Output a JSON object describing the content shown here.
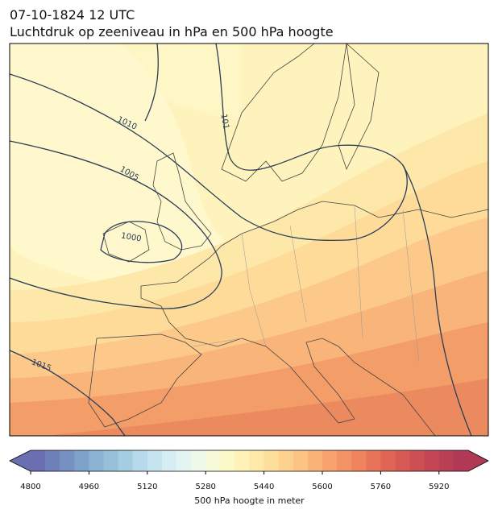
{
  "title": "07-10-1824 12 UTC",
  "subtitle": "Luchtdruk op zeeniveau in hPa en 500 hPa hoogte",
  "isobar_labels": [
    "1010",
    "1005",
    "1000",
    "1015",
    "101"
  ],
  "colorbar": {
    "label": "500 hPa hoogte in meter",
    "lim": [
      4800,
      6000
    ],
    "ticks": [
      4800,
      4960,
      5120,
      5280,
      5440,
      5600,
      5760,
      5920
    ],
    "colors": [
      "#6b6fb1",
      "#7080b9",
      "#7691c1",
      "#7fa2ca",
      "#8ab2d3",
      "#97c1db",
      "#a6cee3",
      "#b6daeb",
      "#c6e4f0",
      "#d6edf4",
      "#e4f4f3",
      "#eef8e8",
      "#f6fad8",
      "#fcf9c8",
      "#fff2b8",
      "#fee9a9",
      "#fedf9b",
      "#fdd28e",
      "#fcc383",
      "#fab377",
      "#f7a26c",
      "#f39264",
      "#ee835d",
      "#e77458",
      "#df6655",
      "#d65a53",
      "#cc4f53",
      "#c24654",
      "#b93f55",
      "#b03a56"
    ]
  }
}
